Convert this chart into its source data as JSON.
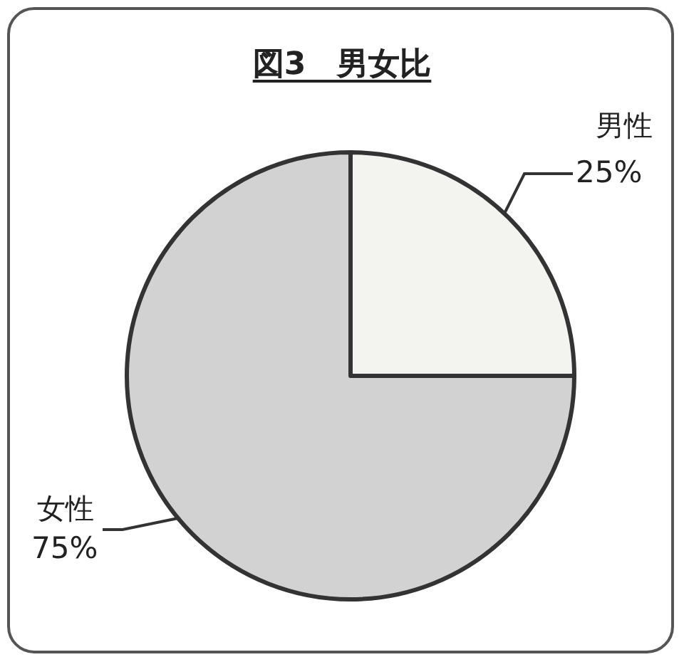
{
  "chart_data": {
    "type": "pie",
    "title": "図3　男女比",
    "categories": [
      "男性",
      "女性"
    ],
    "values": [
      25,
      75
    ],
    "colors": [
      "#f3f3ef",
      "#d2d2d2"
    ],
    "value_labels": [
      "25%",
      "75%"
    ]
  }
}
